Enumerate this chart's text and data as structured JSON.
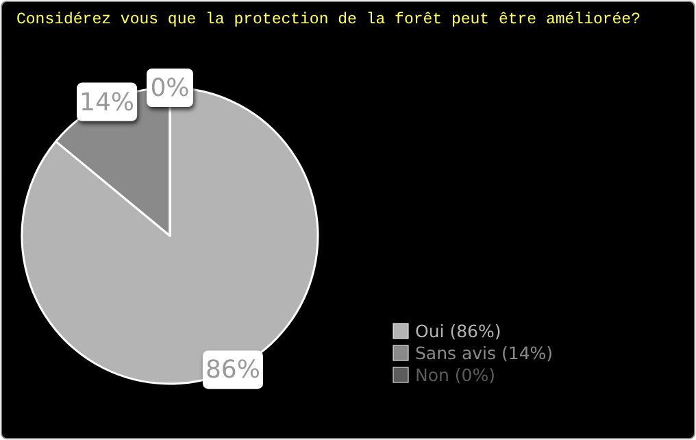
{
  "chart_data": {
    "type": "pie",
    "title": "Considérez vous que la protection de la forêt peut être améliorée?",
    "categories": [
      "Oui (86%)",
      "Sans avis (14%)",
      "Non (0%)"
    ],
    "values": [
      86,
      14,
      0
    ],
    "colors": [
      "#b4b4b4",
      "#8a8a8a",
      "#5c5c5c"
    ],
    "value_labels": [
      "86%",
      "14%",
      "0%"
    ],
    "legend": "bottom right"
  }
}
